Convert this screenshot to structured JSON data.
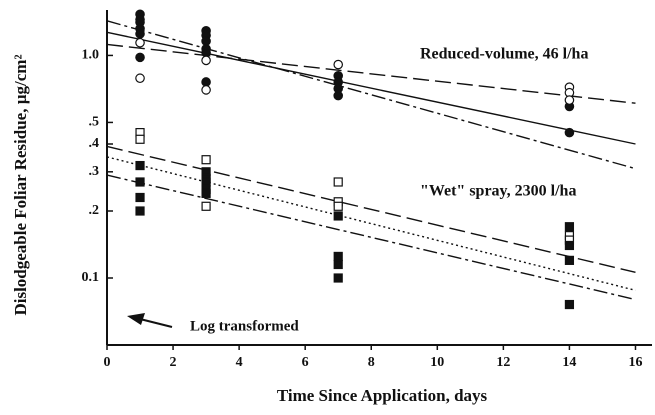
{
  "chart_data": {
    "type": "scatter",
    "xlabel": "Time Since Application, days",
    "ylabel": "Dislodgeable Foliar Residue, µg/cm²",
    "annotations": [
      "Reduced-volume, 46 l/ha",
      "\"Wet\" spray, 2300 l/ha",
      "Log transformed"
    ],
    "xlim": [
      0,
      16.5
    ],
    "xticks": [
      0,
      2,
      4,
      6,
      8,
      10,
      12,
      14,
      16
    ],
    "ylim": [
      0.05,
      1.6
    ],
    "log_y": true,
    "yticks": [
      {
        "value": 1,
        "label": "1.0"
      },
      {
        "value": 0.5,
        "label": ".5"
      },
      {
        "value": 0.4,
        "label": ".4"
      },
      {
        "value": 0.3,
        "label": ".3"
      },
      {
        "value": 0.2,
        "label": ".2"
      },
      0.1
    ],
    "series": [
      {
        "marker": "circle",
        "filled": true,
        "color": "#111111",
        "x": [
          1,
          1,
          1,
          1,
          1,
          1,
          3,
          3,
          3,
          3,
          3,
          3,
          7,
          7,
          7,
          7,
          14,
          14
        ],
        "values": [
          1.53,
          1.45,
          1.41,
          1.32,
          1.25,
          0.98,
          1.29,
          1.23,
          1.16,
          1.07,
          1.03,
          0.76,
          0.81,
          0.76,
          0.71,
          0.66,
          0.59,
          0.45
        ]
      },
      {
        "marker": "circle",
        "filled": false,
        "color": "#111111",
        "x": [
          1,
          1,
          3,
          3,
          7,
          14,
          14,
          14
        ],
        "values": [
          1.14,
          0.79,
          0.95,
          0.7,
          0.91,
          0.72,
          0.68,
          0.63
        ]
      },
      {
        "marker": "square",
        "filled": false,
        "color": "#111111",
        "x": [
          1,
          1,
          3,
          3,
          7,
          7,
          7,
          14,
          14
        ],
        "values": [
          0.45,
          0.42,
          0.34,
          0.21,
          0.27,
          0.22,
          0.21,
          0.155,
          0.148
        ]
      },
      {
        "marker": "square",
        "filled": true,
        "color": "#111111",
        "x": [
          1,
          1,
          1,
          1,
          3,
          3,
          3,
          3,
          3,
          7,
          7,
          7,
          7,
          14,
          14,
          14,
          14
        ],
        "values": [
          0.32,
          0.27,
          0.23,
          0.2,
          0.3,
          0.28,
          0.27,
          0.25,
          0.24,
          0.19,
          0.125,
          0.115,
          0.1,
          0.17,
          0.14,
          0.12,
          0.076
        ]
      }
    ],
    "lines": [
      {
        "dash": "solid",
        "x": [
          0,
          16
        ],
        "values": [
          1.27,
          0.4
        ]
      },
      {
        "dash": "dashdot",
        "x": [
          0,
          16
        ],
        "values": [
          1.43,
          0.31
        ]
      },
      {
        "dash": "dashed",
        "x": [
          0,
          16
        ],
        "values": [
          1.12,
          0.61
        ]
      },
      {
        "dash": "dashed",
        "x": [
          0,
          16
        ],
        "values": [
          0.39,
          0.106
        ]
      },
      {
        "dash": "dotted",
        "x": [
          0,
          16
        ],
        "values": [
          0.35,
          0.088
        ]
      },
      {
        "dash": "dashdot",
        "x": [
          0,
          16
        ],
        "values": [
          0.29,
          0.08
        ]
      }
    ]
  }
}
